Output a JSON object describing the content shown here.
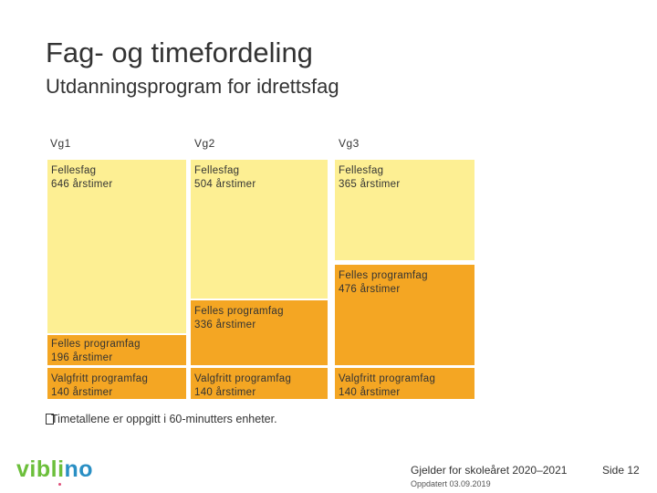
{
  "title": "Fag- og timefordeling",
  "subtitle": "Utdanningsprogram for idrettsfag",
  "columns": [
    {
      "label": "Vg1",
      "blocks": [
        {
          "name": "Fellesfag",
          "hours": "646 årstimer",
          "color": "#fdef93"
        },
        {
          "name": "Felles programfag",
          "hours": "196 årstimer",
          "color": "#f4a623"
        },
        {
          "name": "Valgfritt programfag",
          "hours": "140 årstimer",
          "color": "#f4a623"
        }
      ]
    },
    {
      "label": "Vg2",
      "blocks": [
        {
          "name": "Fellesfag",
          "hours": "504 årstimer",
          "color": "#fdef93"
        },
        {
          "name": "Felles programfag",
          "hours": "336 årstimer",
          "color": "#f4a623"
        },
        {
          "name": "Valgfritt programfag",
          "hours": "140 årstimer",
          "color": "#f4a623"
        }
      ]
    },
    {
      "label": "Vg3",
      "blocks": [
        {
          "name": "Fellesfag",
          "hours": "365 årstimer",
          "color": "#fdef93"
        },
        {
          "name": "Felles programfag",
          "hours": "476 årstimer",
          "color": "#f4a623"
        },
        {
          "name": "Valgfritt programfag",
          "hours": "140 årstimer",
          "color": "#f4a623"
        }
      ]
    }
  ],
  "note": "Timetallene er oppgitt i 60-minutters enheter.",
  "note_glyph": "T",
  "logo": {
    "part1": "vibl",
    "part2": "i",
    "part3": "no",
    "part4": ""
  },
  "footer": {
    "main": "Gjelder for skoleåret 2020–2021",
    "date": "Oppdatert 03.09.2019",
    "page": "Side 12"
  }
}
